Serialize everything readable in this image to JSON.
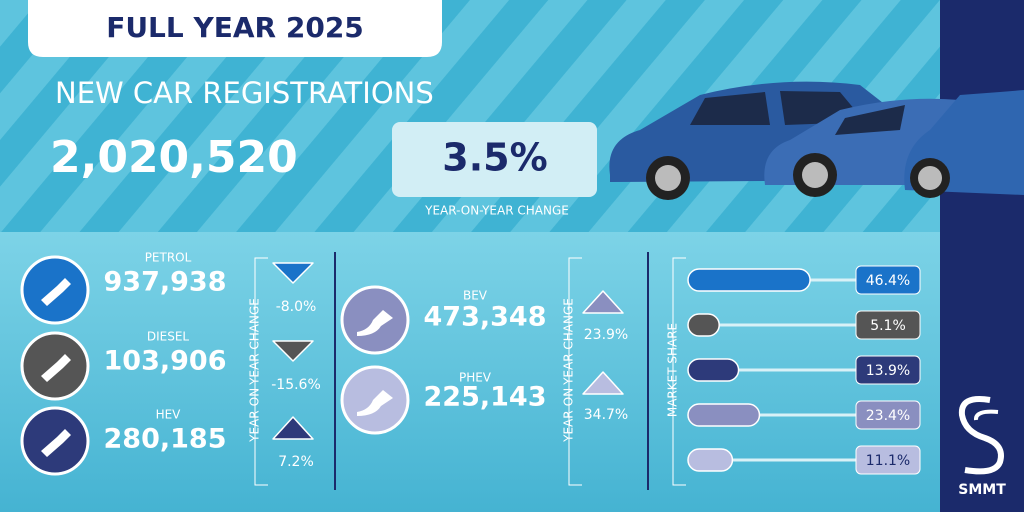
{
  "header": {
    "title": "FULL YEAR 2025",
    "subtitle": "NEW CAR REGISTRATIONS",
    "total": "2,020,520",
    "change": "3.5%"
  },
  "yoy_label": "YEAR-ON-YEAR CHANGE",
  "market_share_label": "MARKET SHARE",
  "fuels": [
    {
      "name": "PETROL",
      "registrations": "937,938",
      "change": "-8.0%",
      "share": {
        "value": 46.4,
        "label": "46.4%"
      }
    },
    {
      "name": "DIESEL",
      "registrations": "103,906",
      "change": "-15.6%",
      "share": {
        "value": 5.1,
        "label": "5.1%"
      }
    },
    {
      "name": "HEV",
      "registrations": "280,185",
      "change": "7.2%",
      "share": {
        "value": 13.9,
        "label": "13.9%"
      }
    },
    {
      "name": "BEV",
      "registrations": "473,348",
      "change": "23.9%",
      "share": {
        "value": 23.4,
        "label": "23.4%"
      }
    },
    {
      "name": "PHEV",
      "registrations": "225,143",
      "change": "34.7%",
      "share": {
        "value": 11.1,
        "label": "11.1%"
      }
    }
  ],
  "logo": "SMMT"
}
